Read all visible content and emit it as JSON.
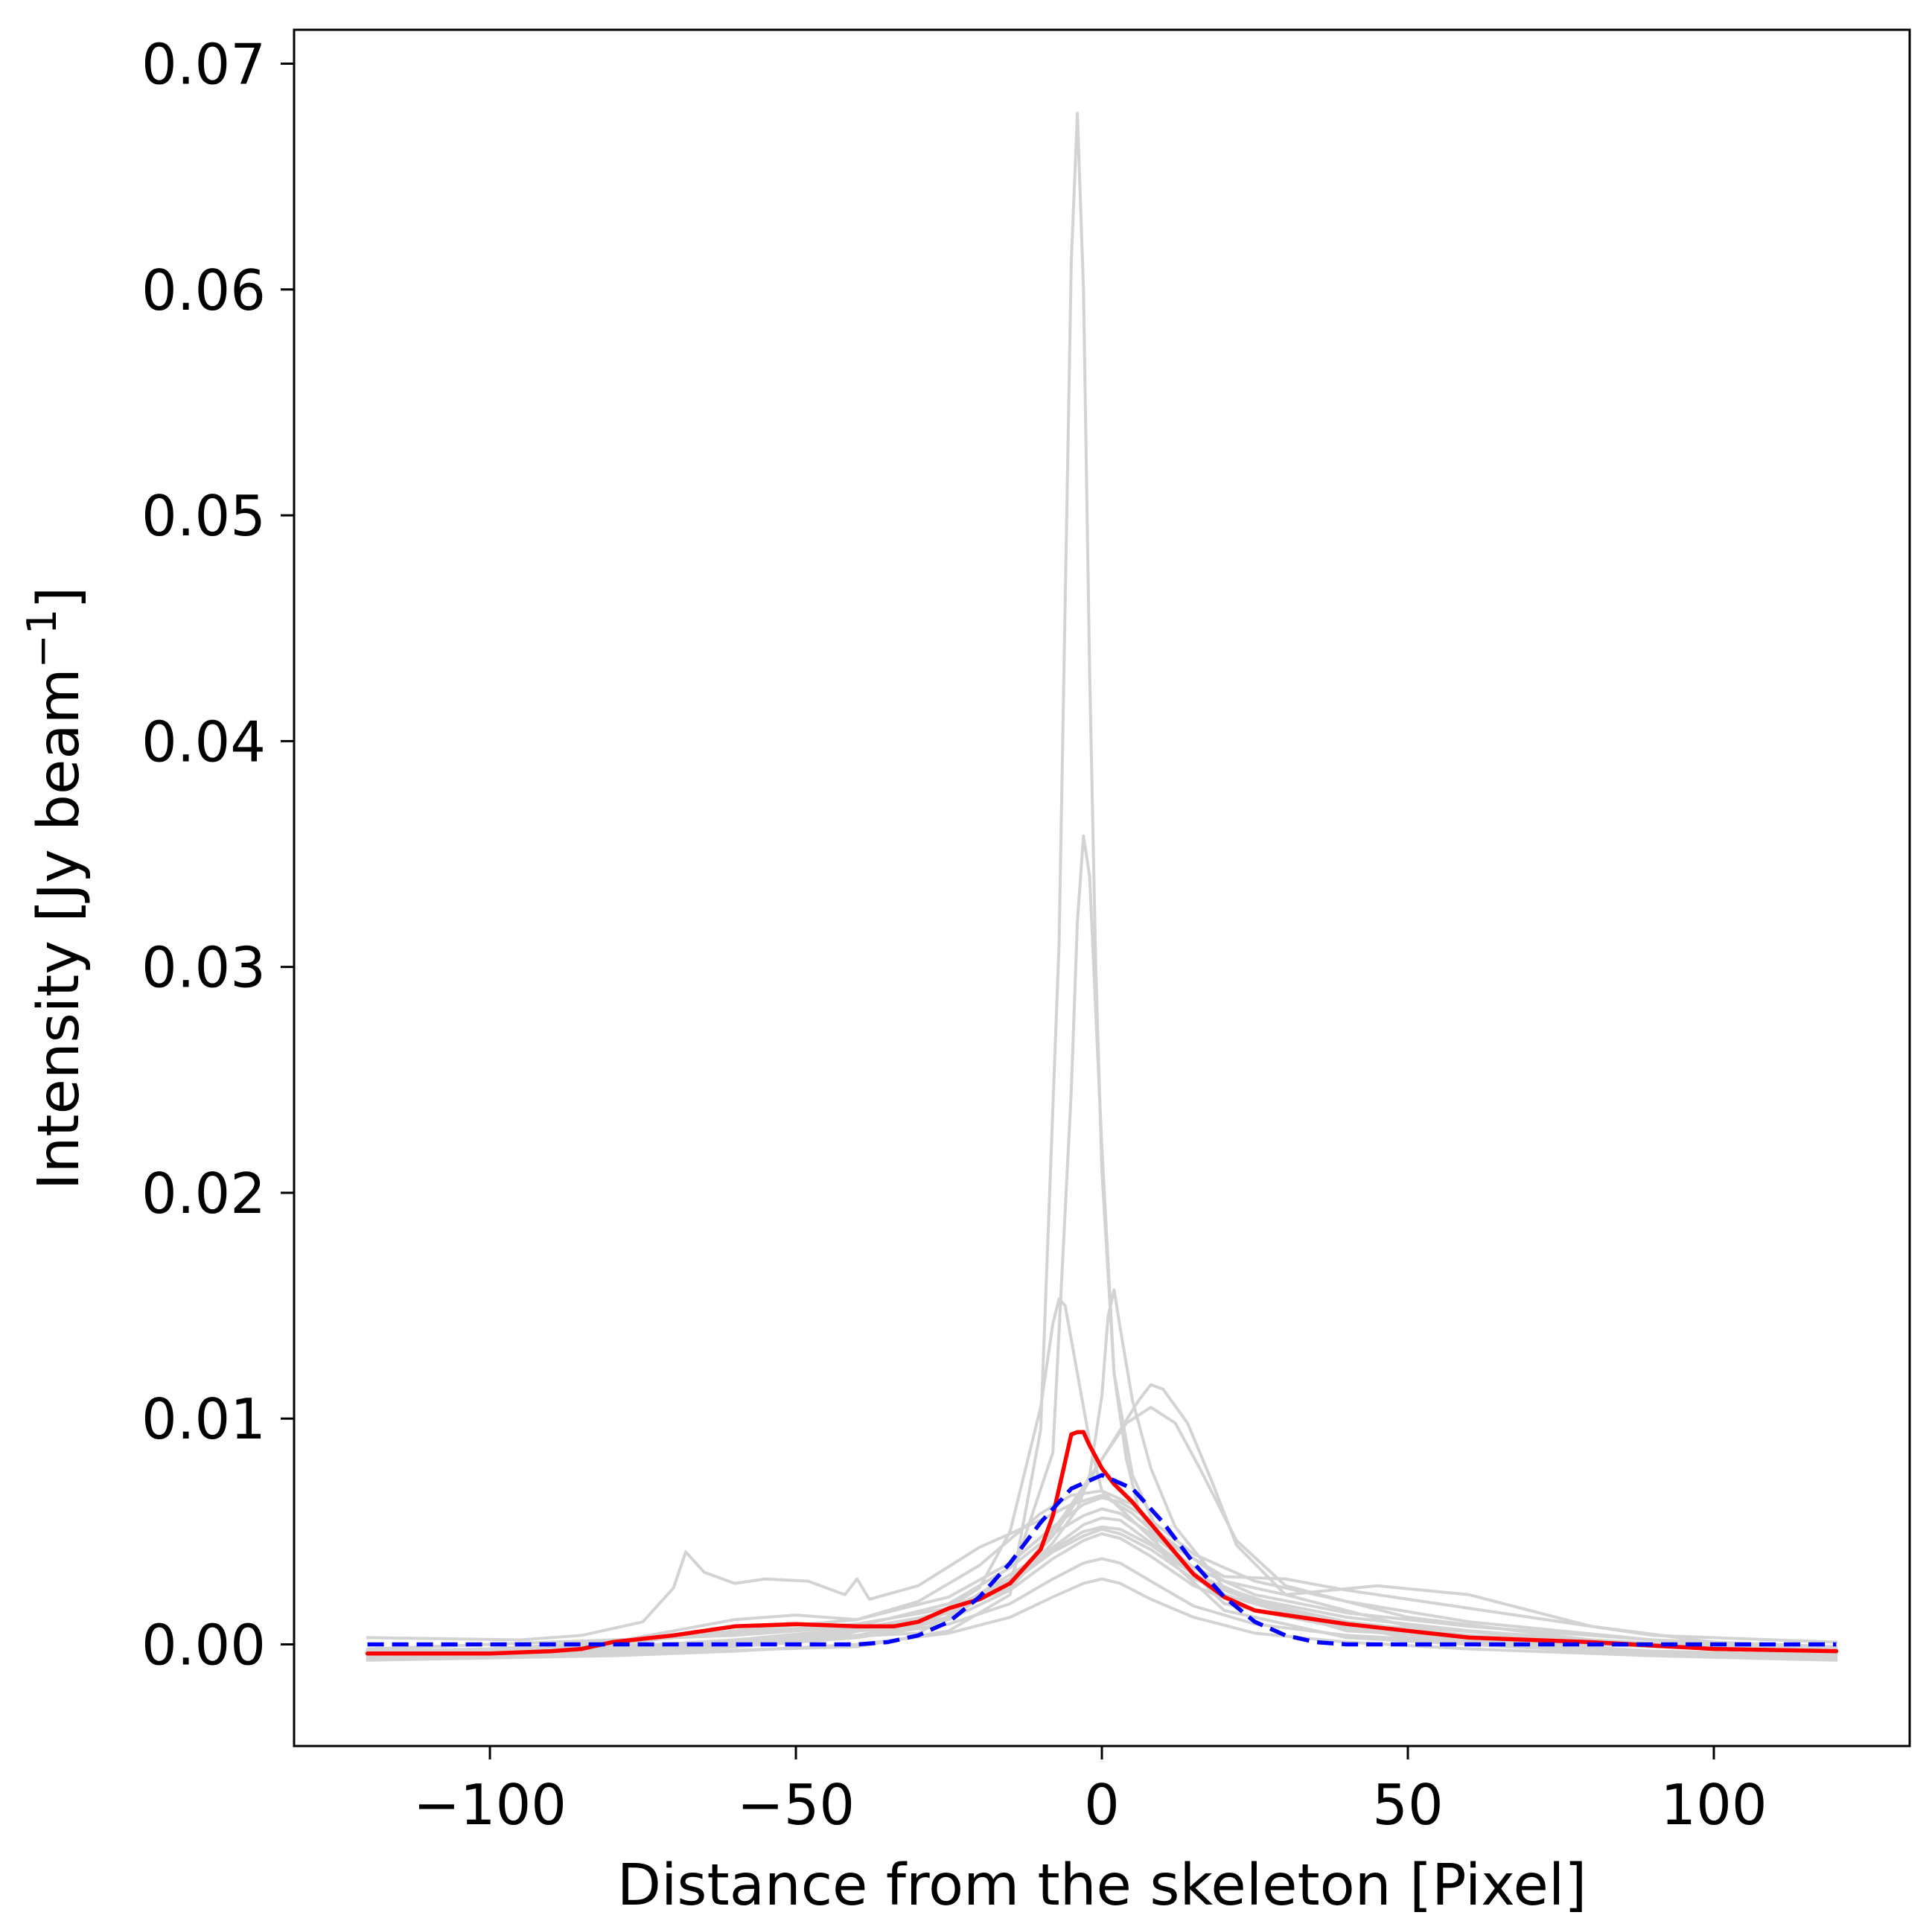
{
  "chart_data": {
    "type": "line",
    "xlabel": "Distance from the skeleton [Pixel]",
    "ylabel": "Intensity [Jy beam",
    "ylabel_sup": "−1",
    "ylabel_close": "]",
    "xlim": [
      -132,
      132
    ],
    "ylim": [
      -0.0045,
      0.0715
    ],
    "xticks": [
      -100,
      -50,
      0,
      50,
      100
    ],
    "xtick_labels": [
      "−100",
      "−50",
      "0",
      "50",
      "100"
    ],
    "yticks": [
      0.0,
      0.01,
      0.02,
      0.03,
      0.04,
      0.05,
      0.06,
      0.07
    ],
    "ytick_labels": [
      "0.00",
      "0.01",
      "0.02",
      "0.03",
      "0.04",
      "0.05",
      "0.06",
      "0.07"
    ],
    "grid": false,
    "colors": {
      "profiles": "#d3d3d3",
      "mean": "#ff0000",
      "fit": "#0000ff"
    },
    "series": [
      {
        "style": "solid",
        "color": "#ff0000",
        "x": [
          -120,
          -110,
          -100,
          -90,
          -85,
          -80,
          -70,
          -60,
          -50,
          -40,
          -34,
          -30,
          -25,
          -20,
          -15,
          -10,
          -8,
          -6,
          -5,
          -4,
          -3,
          -2,
          0,
          2,
          5,
          10,
          15,
          20,
          25,
          30,
          40,
          50,
          60,
          80,
          100,
          120
        ],
        "y": [
          -0.0004,
          -0.0004,
          -0.0004,
          -0.0003,
          -0.0002,
          0.0001,
          0.0004,
          0.0008,
          0.0009,
          0.0008,
          0.0008,
          0.001,
          0.0016,
          0.002,
          0.0027,
          0.0042,
          0.0057,
          0.0081,
          0.0093,
          0.0094,
          0.0094,
          0.0088,
          0.0078,
          0.0071,
          0.0063,
          0.0047,
          0.0031,
          0.0021,
          0.0015,
          0.0013,
          0.0009,
          0.0006,
          0.0003,
          0.0001,
          -0.0002,
          -0.0003
        ]
      },
      {
        "style": "dashed",
        "color": "#0000ff",
        "x": [
          -120,
          -80,
          -60,
          -50,
          -40,
          -35,
          -30,
          -25,
          -20,
          -15,
          -10,
          -5,
          0,
          5,
          10,
          15,
          20,
          25,
          30,
          35,
          40,
          50,
          60,
          80,
          120
        ],
        "y": [
          0.0,
          0.0,
          0.0,
          0.0,
          0.0,
          0.0001,
          0.0004,
          0.001,
          0.0021,
          0.0036,
          0.0054,
          0.0069,
          0.0075,
          0.0069,
          0.0054,
          0.0036,
          0.0021,
          0.001,
          0.0004,
          0.0001,
          0.0,
          0.0,
          0.0,
          0.0,
          0.0
        ]
      },
      {
        "style": "solid",
        "color": "#d3d3d3",
        "x": [
          -120,
          -80,
          -40,
          -25,
          -15,
          -10,
          -7,
          -5,
          -4,
          -3,
          -2,
          -1,
          0,
          2,
          4,
          6,
          10,
          20,
          40,
          80,
          120
        ],
        "y": [
          -0.0006,
          -0.0004,
          -0.0001,
          0.0006,
          0.0022,
          0.0095,
          0.031,
          0.0612,
          0.0678,
          0.06,
          0.043,
          0.03,
          0.021,
          0.012,
          0.0082,
          0.006,
          0.004,
          0.0015,
          0.0003,
          -0.0003,
          -0.0006
        ]
      },
      {
        "style": "solid",
        "color": "#d3d3d3",
        "x": [
          -120,
          -60,
          -30,
          -15,
          -8,
          -5,
          -4,
          -3,
          -2,
          0,
          2,
          5,
          10,
          20,
          50,
          120
        ],
        "y": [
          -0.0004,
          0.0001,
          0.0005,
          0.0028,
          0.0085,
          0.0245,
          0.032,
          0.0358,
          0.034,
          0.022,
          0.012,
          0.0075,
          0.0045,
          0.0018,
          0.0003,
          -0.0002
        ]
      },
      {
        "style": "solid",
        "color": "#d3d3d3",
        "x": [
          -120,
          -90,
          -60,
          -30,
          -20,
          -15,
          -10,
          -8,
          -7,
          -6,
          -4,
          -2,
          0,
          5,
          10,
          20,
          40,
          80,
          120
        ],
        "y": [
          -0.0005,
          -0.0003,
          0.0002,
          0.0008,
          0.0025,
          0.005,
          0.0105,
          0.0142,
          0.0153,
          0.015,
          0.012,
          0.009,
          0.0068,
          0.0055,
          0.0042,
          0.0022,
          0.0006,
          0.0,
          -0.0004
        ]
      },
      {
        "style": "solid",
        "color": "#d3d3d3",
        "x": [
          -120,
          -80,
          -50,
          -30,
          -15,
          -8,
          -4,
          -2,
          0,
          1,
          2,
          3,
          5,
          8,
          12,
          20,
          40,
          80,
          120
        ],
        "y": [
          -0.0003,
          -0.0001,
          0.0003,
          0.0009,
          0.0025,
          0.0045,
          0.006,
          0.0075,
          0.011,
          0.0145,
          0.0157,
          0.014,
          0.0108,
          0.0078,
          0.0052,
          0.0025,
          0.0007,
          0.0,
          -0.0002
        ]
      },
      {
        "style": "solid",
        "color": "#d3d3d3",
        "x": [
          -120,
          -80,
          -40,
          -25,
          -15,
          -8,
          -3,
          0,
          3,
          6,
          8,
          10,
          14,
          18,
          22,
          30,
          50,
          80,
          120
        ],
        "y": [
          -0.0004,
          -0.0001,
          0.0004,
          0.0012,
          0.0028,
          0.0048,
          0.0068,
          0.0082,
          0.0095,
          0.0108,
          0.0115,
          0.0113,
          0.0098,
          0.0072,
          0.0044,
          0.0022,
          0.0008,
          0.0001,
          -0.0003
        ]
      },
      {
        "style": "solid",
        "color": "#d3d3d3",
        "x": [
          -120,
          -80,
          -45,
          -25,
          -12,
          -6,
          0,
          4,
          8,
          12,
          16,
          22,
          30,
          50,
          80,
          120
        ],
        "y": [
          -0.0005,
          -0.0003,
          0.0003,
          0.0014,
          0.0036,
          0.0058,
          0.0082,
          0.0098,
          0.0105,
          0.0098,
          0.0078,
          0.0046,
          0.0026,
          0.0012,
          0.0002,
          -0.0004
        ]
      },
      {
        "style": "solid",
        "color": "#d3d3d3",
        "x": [
          -120,
          -95,
          -85,
          -75,
          -70,
          -68,
          -65,
          -60,
          -55,
          -48,
          -42,
          -40,
          -38,
          -30,
          -20,
          -10,
          -5,
          0,
          5,
          10,
          20,
          30,
          40,
          60,
          90,
          120
        ],
        "y": [
          0.0003,
          0.0002,
          0.0004,
          0.001,
          0.0025,
          0.0041,
          0.0032,
          0.0027,
          0.0029,
          0.0028,
          0.0022,
          0.0029,
          0.002,
          0.0026,
          0.0043,
          0.0055,
          0.0062,
          0.0066,
          0.0058,
          0.0046,
          0.003,
          0.0029,
          0.0024,
          0.0016,
          0.0004,
          0.0001
        ]
      },
      {
        "style": "solid",
        "color": "#d3d3d3",
        "x": [
          -120,
          -100,
          -80,
          -60,
          -50,
          -40,
          -30,
          -20,
          -10,
          -5,
          0,
          5,
          10,
          20,
          30,
          45,
          60,
          80,
          100,
          120
        ],
        "y": [
          -0.0003,
          -0.0002,
          0.0001,
          0.0011,
          0.0013,
          0.0011,
          0.0019,
          0.0035,
          0.0058,
          0.0066,
          0.0068,
          0.0062,
          0.0048,
          0.0028,
          0.0022,
          0.0026,
          0.0022,
          0.0008,
          0.0001,
          -0.0002
        ]
      },
      {
        "style": "solid",
        "color": "#d3d3d3",
        "x": [
          -120,
          -90,
          -70,
          -50,
          -35,
          -25,
          -15,
          -8,
          -3,
          0,
          3,
          8,
          15,
          25,
          35,
          50,
          70,
          100,
          120
        ],
        "y": [
          -0.0005,
          -0.0004,
          -0.0001,
          0.0004,
          0.0008,
          0.0015,
          0.0029,
          0.0043,
          0.0053,
          0.0056,
          0.0055,
          0.0045,
          0.0031,
          0.0019,
          0.0011,
          0.0006,
          0.0002,
          -0.0002,
          -0.0004
        ]
      },
      {
        "style": "solid",
        "color": "#d3d3d3",
        "x": [
          -120,
          -100,
          -80,
          -60,
          -40,
          -25,
          -15,
          -8,
          -3,
          0,
          3,
          8,
          15,
          25,
          40,
          60,
          90,
          120
        ],
        "y": [
          -0.0006,
          -0.0005,
          -0.0003,
          0.0,
          0.0003,
          0.0009,
          0.0018,
          0.0029,
          0.0036,
          0.0038,
          0.0036,
          0.0028,
          0.0017,
          0.0009,
          0.0004,
          0.0001,
          -0.0003,
          -0.0005
        ]
      },
      {
        "style": "solid",
        "color": "#d3d3d3",
        "x": [
          -120,
          -100,
          -80,
          -60,
          -40,
          -25,
          -15,
          -8,
          -3,
          0,
          3,
          8,
          15,
          25,
          40,
          60,
          90,
          120
        ],
        "y": [
          -0.0007,
          -0.0006,
          -0.0005,
          -0.0003,
          0.0,
          0.0005,
          0.0012,
          0.0021,
          0.0027,
          0.0029,
          0.0027,
          0.002,
          0.0012,
          0.0005,
          0.0001,
          -0.0002,
          -0.0005,
          -0.0007
        ]
      },
      {
        "style": "solid",
        "color": "#d3d3d3",
        "x": [
          -120,
          -100,
          -80,
          -60,
          -40,
          -25,
          -15,
          -8,
          -3,
          0,
          3,
          8,
          15,
          25,
          40,
          60,
          90,
          120
        ],
        "y": [
          -0.0004,
          -0.0003,
          0.0,
          0.0006,
          0.0011,
          0.0021,
          0.0036,
          0.0052,
          0.0062,
          0.0065,
          0.0063,
          0.0055,
          0.004,
          0.0028,
          0.0019,
          0.001,
          0.0002,
          -0.0003
        ]
      },
      {
        "style": "solid",
        "color": "#d3d3d3",
        "x": [
          -120,
          -100,
          -80,
          -60,
          -40,
          -25,
          -15,
          -8,
          -3,
          0,
          3,
          8,
          15,
          25,
          40,
          60,
          90,
          120
        ],
        "y": [
          -0.0002,
          0.0,
          0.0002,
          0.0004,
          0.0008,
          0.0018,
          0.0034,
          0.0049,
          0.0057,
          0.006,
          0.0058,
          0.0049,
          0.0034,
          0.0022,
          0.0014,
          0.0008,
          0.0002,
          -0.0001
        ]
      },
      {
        "style": "solid",
        "color": "#d3d3d3",
        "x": [
          -120,
          -100,
          -80,
          -60,
          -40,
          -25,
          -15,
          -8,
          -3,
          0,
          3,
          8,
          15,
          25,
          40,
          60,
          90,
          120
        ],
        "y": [
          -0.0006,
          -0.0005,
          -0.0004,
          -0.0001,
          0.0003,
          0.0011,
          0.0024,
          0.0038,
          0.0046,
          0.0049,
          0.0047,
          0.0039,
          0.0026,
          0.0015,
          0.0007,
          0.0002,
          -0.0003,
          -0.0005
        ]
      },
      {
        "style": "solid",
        "color": "#d3d3d3",
        "x": [
          -120,
          -100,
          -80,
          -60,
          -40,
          -25,
          -15,
          -8,
          -3,
          0,
          3,
          8,
          15,
          25,
          40,
          60,
          90,
          120
        ],
        "y": [
          -0.0003,
          -0.0002,
          0.0001,
          0.0005,
          0.0009,
          0.0016,
          0.0028,
          0.0042,
          0.005,
          0.0052,
          0.0051,
          0.0044,
          0.0031,
          0.002,
          0.0012,
          0.0006,
          0.0,
          -0.0003
        ]
      },
      {
        "style": "solid",
        "color": "#d3d3d3",
        "x": [
          -120,
          -100,
          -80,
          -60,
          -40,
          -25,
          -15,
          -8,
          -3,
          0,
          3,
          8,
          15,
          25,
          40,
          60,
          90,
          120
        ],
        "y": [
          -0.0005,
          -0.0004,
          -0.0002,
          0.0002,
          0.0007,
          0.0014,
          0.0027,
          0.0041,
          0.0048,
          0.0051,
          0.0049,
          0.0042,
          0.0029,
          0.0019,
          0.001,
          0.0004,
          -0.0001,
          -0.0004
        ]
      }
    ]
  }
}
